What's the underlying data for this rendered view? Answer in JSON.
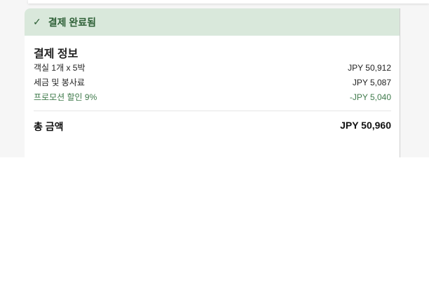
{
  "status": {
    "icon": "check-icon",
    "label": "결제 완료됨",
    "color": "#d9e8db"
  },
  "payment_info": {
    "title": "결제 정보",
    "items": [
      {
        "label": "객실 1개 x 5박",
        "amount": "JPY 50,912"
      },
      {
        "label": "세금 및 봉사료",
        "amount": "JPY 5,087"
      },
      {
        "label": "프로모션 할인 9%",
        "amount": "-JPY 5,040"
      }
    ],
    "total_label": "총 금액",
    "total_amount": "JPY 50,960"
  }
}
